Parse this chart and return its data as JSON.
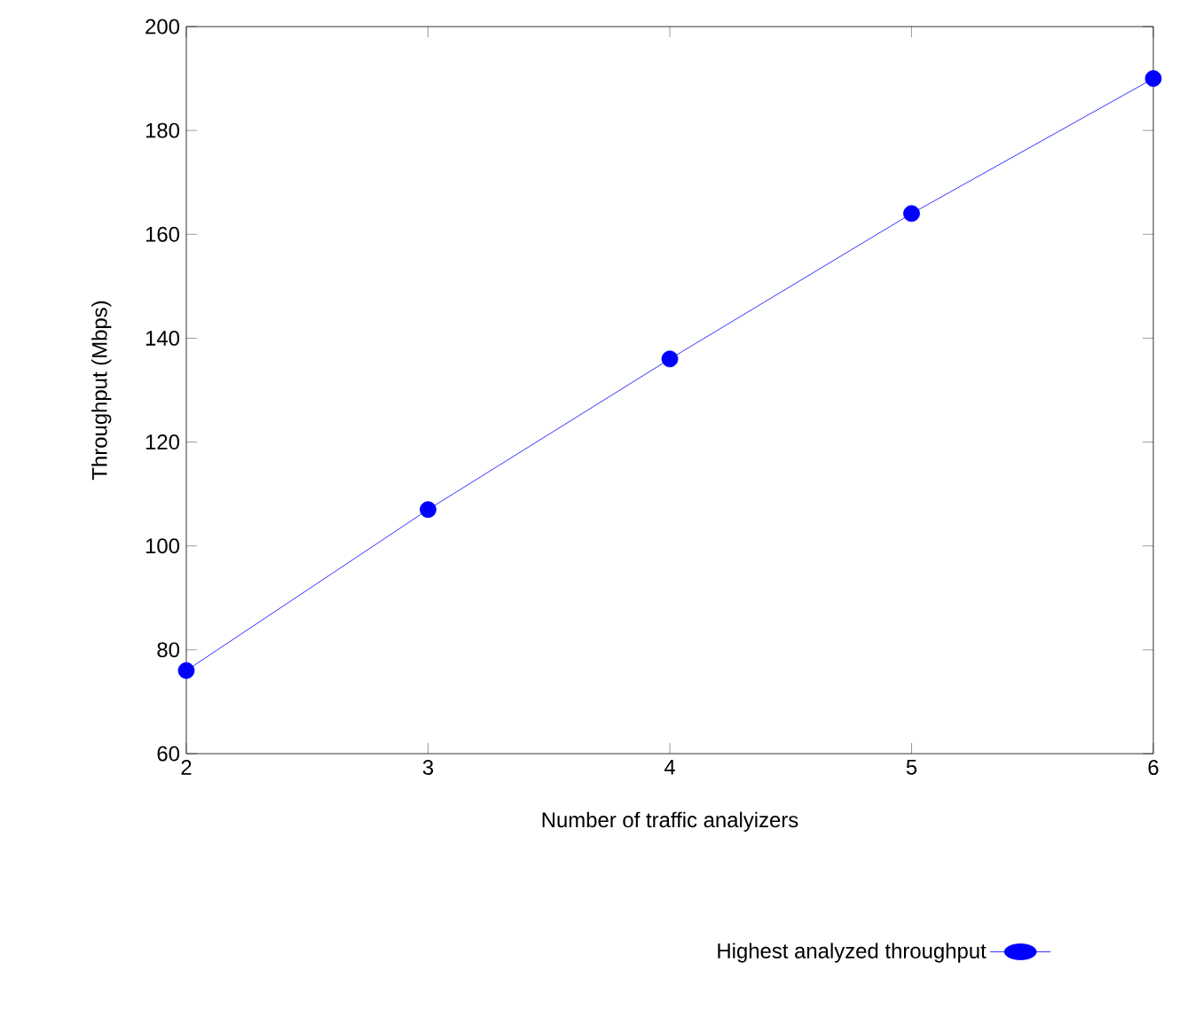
{
  "chart_data": {
    "type": "line",
    "xlabel": "Number of traffic analyizers",
    "ylabel": "Throughput (Mbps)",
    "x": [
      2,
      3,
      4,
      5,
      6
    ],
    "series": [
      {
        "name": "Highest analyzed throughput",
        "color": "#0000ff",
        "values": [
          76,
          107,
          136,
          164,
          190
        ]
      }
    ],
    "xlim": [
      2,
      6
    ],
    "xticks": [
      2,
      3,
      4,
      5,
      6
    ],
    "ylim": [
      60,
      200
    ],
    "yticks": [
      60,
      80,
      100,
      120,
      140,
      160,
      180,
      200
    ],
    "grid": false,
    "legend": "bottom",
    "marker": "circle",
    "line_style": "solid"
  }
}
